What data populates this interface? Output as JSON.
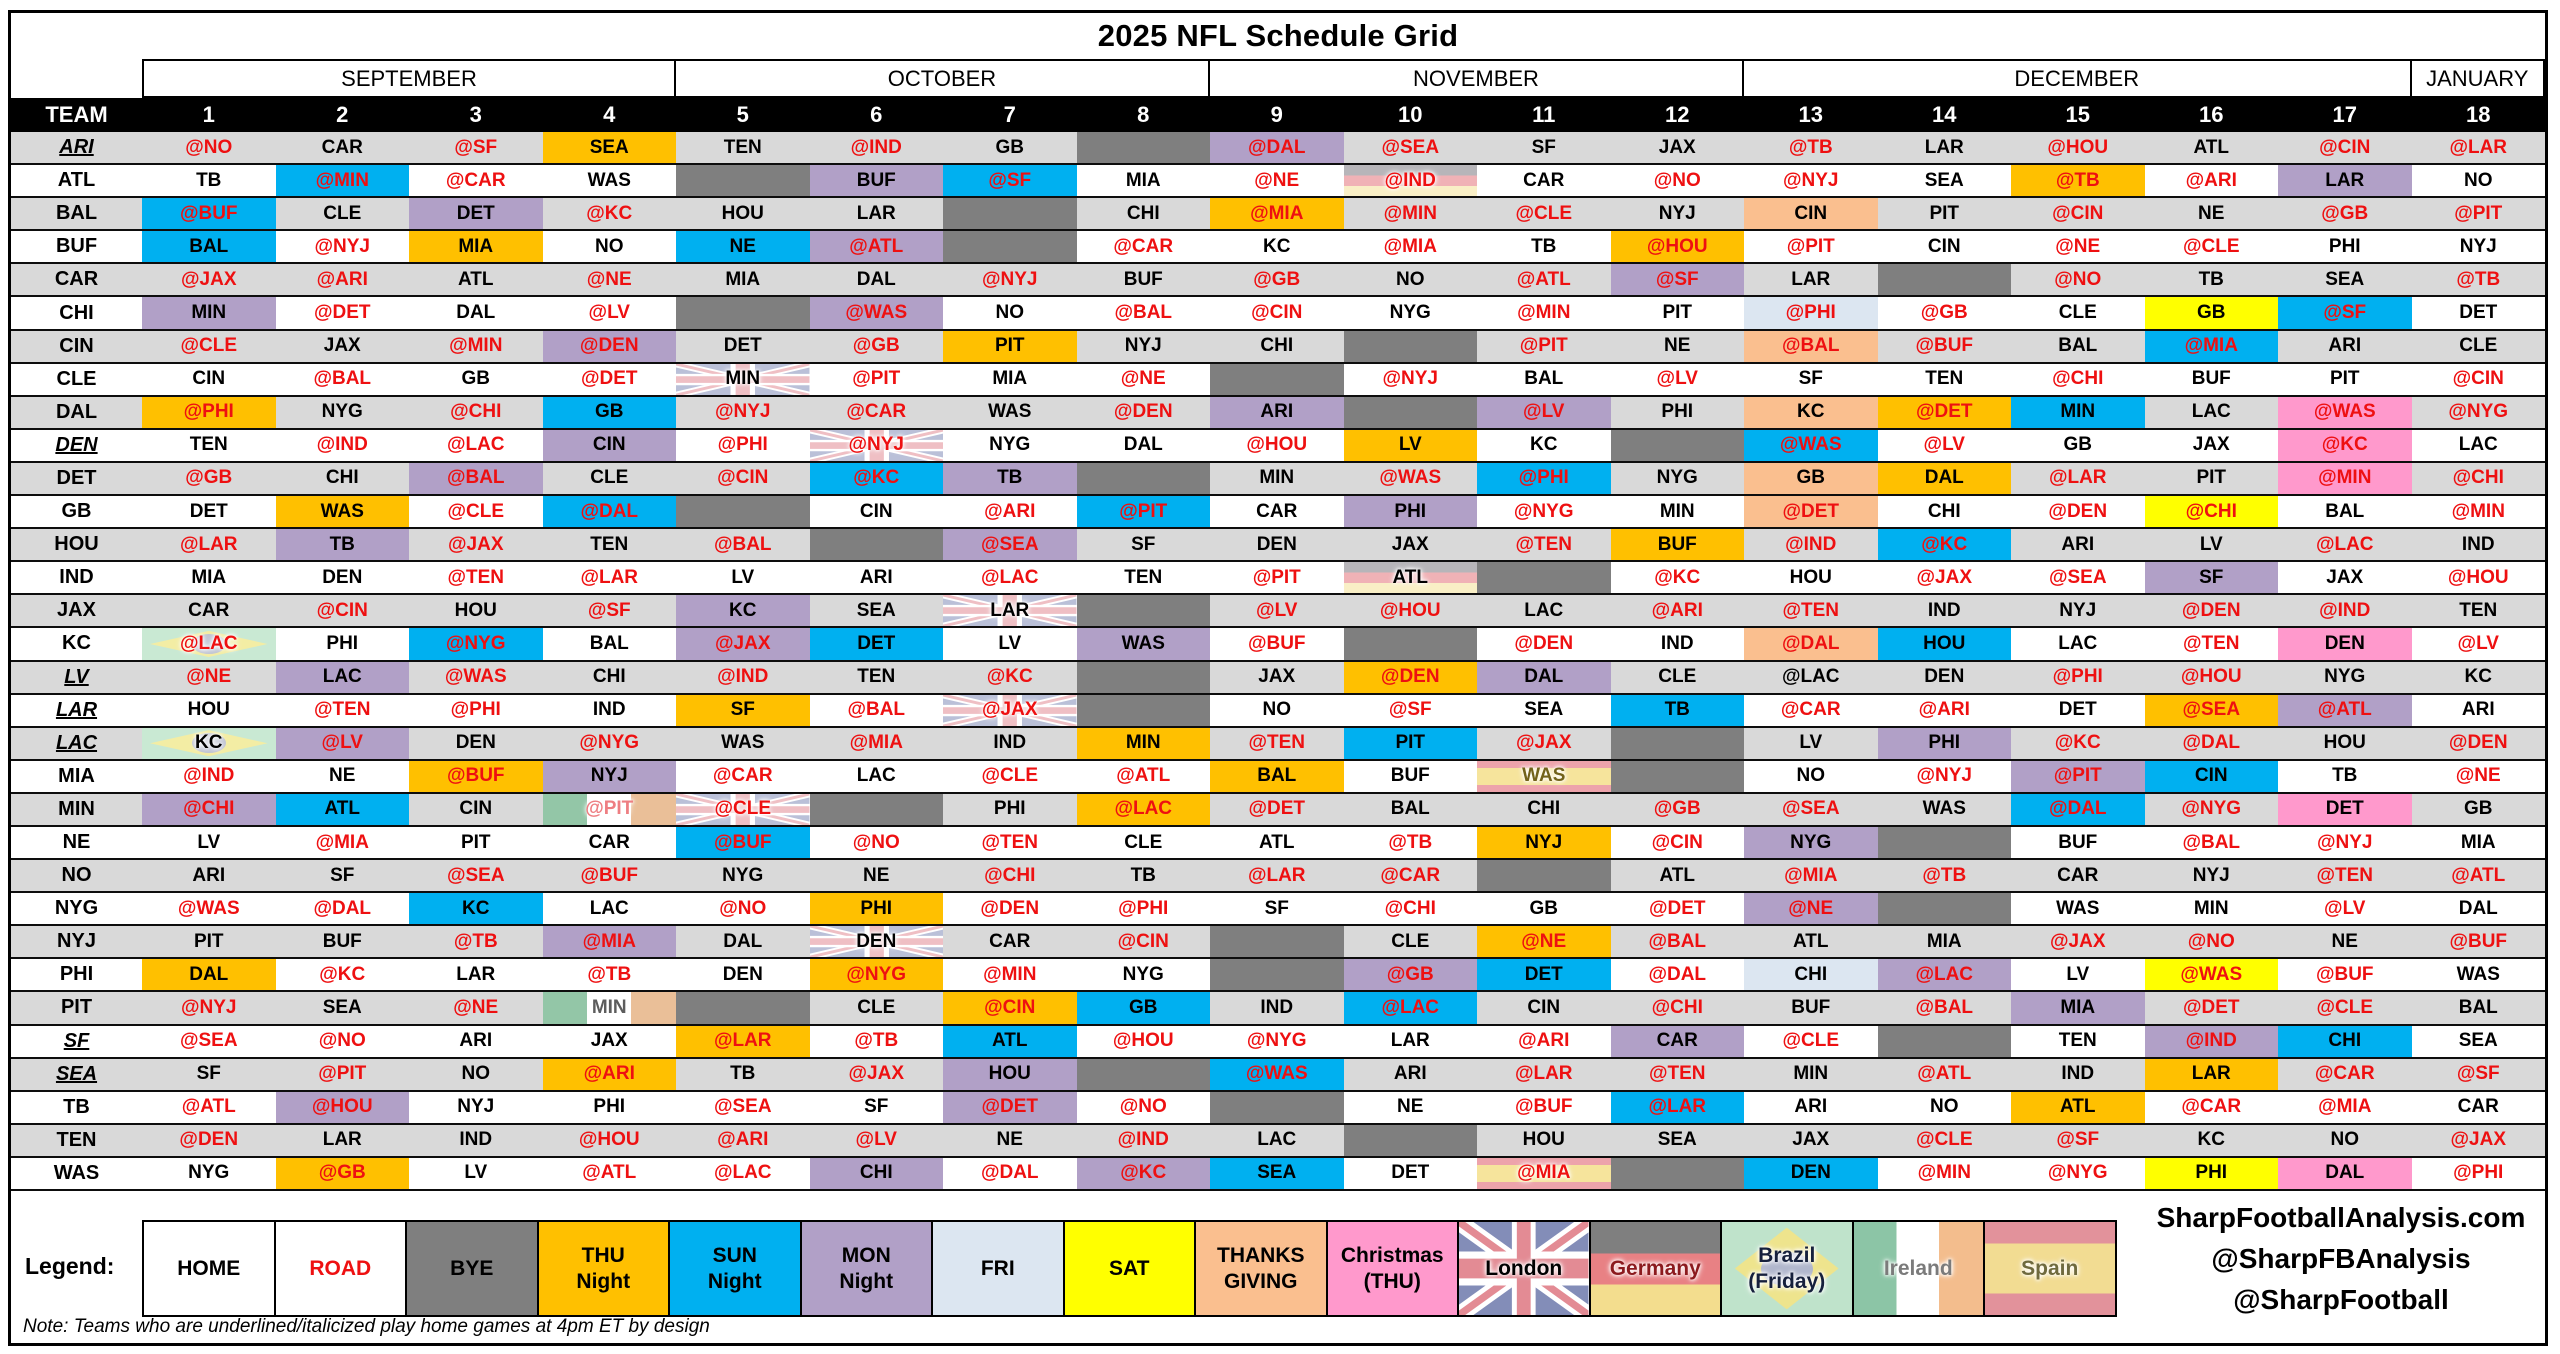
{
  "title": "2025 NFL Schedule Grid",
  "footer": {
    "site": "SharpFootballAnalysis.com",
    "handle1": "@SharpFBAnalysis",
    "handle2": "@SharpFootball"
  },
  "note": "Note: Teams who are underlined/italicized play home games at 4pm ET by design",
  "legend": {
    "label": "Legend:",
    "items": [
      {
        "label": "HOME",
        "type": "homebox"
      },
      {
        "label": "ROAD",
        "type": "roadbox"
      },
      {
        "label": "BYE",
        "type": "bye"
      },
      {
        "label": "THU\nNight",
        "type": "thu"
      },
      {
        "label": "SUN\nNight",
        "type": "sun"
      },
      {
        "label": "MON\nNight",
        "type": "mon"
      },
      {
        "label": "FRI",
        "type": "fri"
      },
      {
        "label": "SAT",
        "type": "sat"
      },
      {
        "label": "THANKS\nGIVING",
        "type": "tg"
      },
      {
        "label": "Christmas\n(THU)",
        "type": "xmas"
      },
      {
        "label": "London",
        "type": "london"
      },
      {
        "label": "Germany",
        "type": "germany"
      },
      {
        "label": "Brazil\n(Friday)",
        "type": "brazil"
      },
      {
        "label": "Ireland",
        "type": "ireland"
      },
      {
        "label": "Spain",
        "type": "spain"
      }
    ]
  },
  "colors": {
    "row_alt_gray": "#d9d9d9",
    "road_text": "#ee1011",
    "bye": "#7f7f7f",
    "thu_night": "#ffc000",
    "sun_night": "#00b0f0",
    "mon_night": "#b1a0c7",
    "fri": "#dce6f1",
    "sat": "#ffff00",
    "thanksgiving": "#fabf8f",
    "christmas": "#ff99cc"
  },
  "chart_data": {
    "type": "table",
    "title": "2025 NFL Schedule Grid",
    "team_column_label": "TEAM",
    "weeks": [
      "1",
      "2",
      "3",
      "4",
      "5",
      "6",
      "7",
      "8",
      "9",
      "10",
      "11",
      "12",
      "13",
      "14",
      "15",
      "16",
      "17",
      "18"
    ],
    "month_groups": [
      {
        "label": "SEPTEMBER",
        "weeks": 4
      },
      {
        "label": "OCTOBER",
        "weeks": 4
      },
      {
        "label": "NOVEMBER",
        "weeks": 4
      },
      {
        "label": "DECEMBER",
        "weeks": 5
      },
      {
        "label": "JANUARY",
        "weeks": 1
      }
    ],
    "cell_format": "opponent|background|textstyle : background one of bye,thu,sun,mon,fri,sat,tg,xmas,london,germany,brazil,ireland,spain; @ prefix means road (red text)",
    "rows": [
      {
        "team": "ARI",
        "italic": true,
        "games": [
          "@NO",
          "CAR",
          "@SF",
          "SEA|thu",
          "TEN",
          "@IND",
          "GB",
          "|bye",
          "@DAL|mon",
          "@SEA",
          "SF",
          "JAX",
          "@TB",
          "LAR",
          "@HOU",
          "ATL",
          "@CIN",
          "@LAR"
        ]
      },
      {
        "team": "ATL",
        "italic": false,
        "games": [
          "TB",
          "@MIN|sun",
          "@CAR",
          "WAS",
          "|bye",
          "BUF|mon",
          "@SF|sun",
          "MIA",
          "@NE",
          "@IND|germany",
          "CAR",
          "@NO",
          "@NYJ",
          "SEA",
          "@TB|thu",
          "@ARI",
          "LAR|mon",
          "NO"
        ]
      },
      {
        "team": "BAL",
        "italic": false,
        "games": [
          "@BUF|sun",
          "CLE",
          "DET|mon",
          "@KC",
          "HOU",
          "LAR",
          "|bye",
          "CHI",
          "@MIA|thu",
          "@MIN",
          "@CLE",
          "NYJ",
          "CIN|tg",
          "PIT",
          "@CIN",
          "NE",
          "@GB",
          "@PIT"
        ]
      },
      {
        "team": "BUF",
        "italic": false,
        "games": [
          "BAL|sun",
          "@NYJ",
          "MIA|thu",
          "NO",
          "NE|sun",
          "@ATL|mon",
          "|bye",
          "@CAR",
          "KC",
          "@MIA",
          "TB",
          "@HOU|thu",
          "@PIT",
          "CIN",
          "@NE",
          "@CLE",
          "PHI",
          "NYJ"
        ]
      },
      {
        "team": "CAR",
        "italic": false,
        "games": [
          "@JAX",
          "@ARI",
          "ATL",
          "@NE",
          "MIA",
          "DAL",
          "@NYJ",
          "BUF",
          "@GB",
          "NO",
          "@ATL",
          "@SF|mon",
          "LAR",
          "|bye",
          "@NO",
          "TB",
          "SEA",
          "@TB"
        ]
      },
      {
        "team": "CHI",
        "italic": false,
        "games": [
          "MIN|mon",
          "@DET",
          "DAL",
          "@LV",
          "|bye",
          "@WAS|mon",
          "NO",
          "@BAL",
          "@CIN",
          "NYG",
          "@MIN",
          "PIT",
          "@PHI|fri",
          "@GB",
          "CLE",
          "GB|sat",
          "@SF|sun",
          "DET"
        ]
      },
      {
        "team": "CIN",
        "italic": false,
        "games": [
          "@CLE",
          "JAX",
          "@MIN",
          "@DEN|mon",
          "DET",
          "@GB",
          "PIT|thu",
          "NYJ",
          "CHI",
          "|bye",
          "@PIT",
          "NE",
          "@BAL|tg",
          "@BUF",
          "BAL",
          "@MIA|sun",
          "ARI",
          "CLE"
        ]
      },
      {
        "team": "CLE",
        "italic": false,
        "games": [
          "CIN",
          "@BAL",
          "GB",
          "@DET",
          "MIN|london",
          "@PIT",
          "MIA",
          "@NE",
          "|bye",
          "@NYJ",
          "BAL",
          "@LV",
          "SF",
          "TEN",
          "@CHI",
          "BUF",
          "PIT",
          "@CIN"
        ]
      },
      {
        "team": "DAL",
        "italic": false,
        "games": [
          "@PHI|thu",
          "NYG",
          "@CHI",
          "GB|sun",
          "@NYJ",
          "@CAR",
          "WAS",
          "@DEN",
          "ARI|mon",
          "|bye",
          "@LV|mon",
          "PHI",
          "KC|tg",
          "@DET|thu",
          "MIN|sun",
          "LAC",
          "@WAS|xmas",
          "@NYG"
        ]
      },
      {
        "team": "DEN",
        "italic": true,
        "games": [
          "TEN",
          "@IND",
          "@LAC",
          "CIN|mon",
          "@PHI",
          "@NYJ|london",
          "NYG",
          "DAL",
          "@HOU",
          "LV|thu",
          "KC",
          "|bye",
          "@WAS|sun",
          "@LV",
          "GB",
          "JAX",
          "@KC|xmas",
          "LAC"
        ]
      },
      {
        "team": "DET",
        "italic": false,
        "games": [
          "@GB",
          "CHI",
          "@BAL|mon",
          "CLE",
          "@CIN",
          "@KC|sun",
          "TB|mon",
          "|bye",
          "MIN",
          "@WAS",
          "@PHI|sun",
          "NYG",
          "GB|tg",
          "DAL|thu",
          "@LAR",
          "PIT",
          "@MIN|xmas",
          "@CHI"
        ]
      },
      {
        "team": "GB",
        "italic": false,
        "games": [
          "DET",
          "WAS|thu",
          "@CLE",
          "@DAL|sun",
          "|bye",
          "CIN",
          "@ARI",
          "@PIT|sun",
          "CAR",
          "PHI|mon",
          "@NYG",
          "MIN",
          "@DET|tg",
          "CHI",
          "@DEN",
          "@CHI|sat",
          "BAL",
          "@MIN"
        ]
      },
      {
        "team": "HOU",
        "italic": false,
        "games": [
          "@LAR",
          "TB|mon",
          "@JAX",
          "TEN",
          "@BAL",
          "|bye",
          "@SEA|mon",
          "SF",
          "DEN",
          "JAX",
          "@TEN",
          "BUF|thu",
          "@IND",
          "@KC|sun",
          "ARI",
          "LV",
          "@LAC",
          "IND"
        ]
      },
      {
        "team": "IND",
        "italic": false,
        "games": [
          "MIA",
          "DEN",
          "@TEN",
          "@LAR",
          "LV",
          "ARI",
          "@LAC",
          "TEN",
          "@PIT",
          "ATL|germany",
          "|bye",
          "@KC",
          "HOU",
          "@JAX",
          "@SEA",
          "SF|mon",
          "JAX",
          "@HOU"
        ]
      },
      {
        "team": "JAX",
        "italic": false,
        "games": [
          "CAR",
          "@CIN",
          "HOU",
          "@SF",
          "KC|mon",
          "SEA",
          "LAR|london",
          "|bye",
          "@LV",
          "@HOU",
          "LAC",
          "@ARI",
          "@TEN",
          "IND",
          "NYJ",
          "@DEN",
          "@IND",
          "TEN"
        ]
      },
      {
        "team": "KC",
        "italic": false,
        "games": [
          "@LAC|brazil",
          "PHI",
          "@NYG|sun",
          "BAL",
          "@JAX|mon",
          "DET|sun",
          "LV",
          "WAS|mon",
          "@BUF",
          "|bye",
          "@DEN",
          "IND",
          "@DAL|tg",
          "HOU|sun",
          "LAC",
          "@TEN",
          "DEN|xmas",
          "@LV"
        ]
      },
      {
        "team": "LV",
        "italic": true,
        "games": [
          "@NE",
          "LAC|mon",
          "@WAS",
          "CHI",
          "@IND",
          "TEN",
          "@KC",
          "|bye",
          "JAX",
          "@DEN|thu",
          "DAL|mon",
          "CLE",
          "@LAC||home",
          "DEN",
          "@PHI",
          "@HOU",
          "NYG",
          "KC"
        ]
      },
      {
        "team": "LAR",
        "italic": true,
        "games": [
          "HOU",
          "@TEN",
          "@PHI",
          "IND",
          "SF|thu",
          "@BAL",
          "@JAX|london",
          "|bye",
          "NO",
          "@SF",
          "SEA",
          "TB|sun",
          "@CAR",
          "@ARI",
          "DET",
          "@SEA|thu",
          "@ATL|mon",
          "ARI"
        ]
      },
      {
        "team": "LAC",
        "italic": true,
        "games": [
          "KC|brazil",
          "@LV|mon",
          "DEN",
          "@NYG",
          "WAS",
          "@MIA",
          "IND",
          "MIN|thu",
          "@TEN",
          "PIT|sun",
          "@JAX",
          "|bye",
          "LV",
          "PHI|mon",
          "@KC",
          "@DAL",
          "HOU",
          "@DEN"
        ]
      },
      {
        "team": "MIA",
        "italic": false,
        "games": [
          "@IND",
          "NE",
          "@BUF|thu",
          "NYJ|mon",
          "@CAR",
          "LAC",
          "@CLE",
          "@ATL",
          "BAL|thu",
          "BUF",
          "WAS|spain|khaki",
          "|bye",
          "NO",
          "@NYJ",
          "@PIT|mon",
          "CIN|sun",
          "TB",
          "@NE"
        ]
      },
      {
        "team": "MIN",
        "italic": false,
        "games": [
          "@CHI|mon",
          "ATL|sun",
          "CIN",
          "@PIT|ireland|salmon",
          "@CLE|london",
          "|bye",
          "PHI",
          "@LAC|thu",
          "@DET",
          "BAL",
          "CHI",
          "@GB",
          "@SEA",
          "WAS",
          "@DAL|sun",
          "@NYG",
          "DET|xmas",
          "GB"
        ]
      },
      {
        "team": "NE",
        "italic": false,
        "games": [
          "LV",
          "@MIA",
          "PIT",
          "CAR",
          "@BUF|sun",
          "@NO",
          "@TEN",
          "CLE",
          "ATL",
          "@TB",
          "NYJ|thu",
          "@CIN",
          "NYG|mon",
          "|bye",
          "BUF",
          "@BAL",
          "@NYJ",
          "MIA"
        ]
      },
      {
        "team": "NO",
        "italic": false,
        "games": [
          "ARI",
          "SF",
          "@SEA",
          "@BUF",
          "NYG",
          "NE",
          "@CHI",
          "TB",
          "@LAR",
          "@CAR",
          "|bye",
          "ATL",
          "@MIA",
          "@TB",
          "CAR",
          "NYJ",
          "@TEN",
          "@ATL"
        ]
      },
      {
        "team": "NYG",
        "italic": false,
        "games": [
          "@WAS",
          "@DAL",
          "KC|sun",
          "LAC",
          "@NO",
          "PHI|thu",
          "@DEN",
          "@PHI",
          "SF",
          "@CHI",
          "GB",
          "@DET",
          "@NE|mon",
          "|bye",
          "WAS",
          "MIN",
          "@LV",
          "DAL"
        ]
      },
      {
        "team": "NYJ",
        "italic": false,
        "games": [
          "PIT",
          "BUF",
          "@TB",
          "@MIA|mon",
          "DAL",
          "DEN|london",
          "CAR",
          "@CIN",
          "|bye",
          "CLE",
          "@NE|thu",
          "@BAL",
          "ATL",
          "MIA",
          "@JAX",
          "@NO",
          "NE",
          "@BUF"
        ]
      },
      {
        "team": "PHI",
        "italic": false,
        "games": [
          "DAL|thu",
          "@KC",
          "LAR",
          "@TB",
          "DEN",
          "@NYG|thu",
          "@MIN",
          "NYG",
          "|bye",
          "@GB|mon",
          "DET|sun",
          "@DAL",
          "CHI|fri",
          "@LAC|mon",
          "LV",
          "@WAS|sat",
          "@BUF",
          "WAS"
        ]
      },
      {
        "team": "PIT",
        "italic": false,
        "games": [
          "@NYJ",
          "SEA",
          "@NE",
          "MIN|ireland|muted",
          "|bye",
          "CLE",
          "@CIN|thu",
          "GB|sun",
          "IND",
          "@LAC|sun",
          "CIN",
          "@CHI",
          "BUF",
          "@BAL",
          "MIA|mon",
          "@DET",
          "@CLE",
          "BAL"
        ]
      },
      {
        "team": "SF",
        "italic": true,
        "games": [
          "@SEA",
          "@NO",
          "ARI",
          "JAX",
          "@LAR|thu",
          "@TB",
          "ATL|sun",
          "@HOU",
          "@NYG",
          "LAR",
          "@ARI",
          "CAR|mon",
          "@CLE",
          "|bye",
          "TEN",
          "@IND|mon",
          "CHI|sun",
          "SEA"
        ]
      },
      {
        "team": "SEA",
        "italic": true,
        "games": [
          "SF",
          "@PIT",
          "NO",
          "@ARI|thu",
          "TB",
          "@JAX",
          "HOU|mon",
          "|bye",
          "@WAS|sun",
          "ARI",
          "@LAR",
          "@TEN",
          "MIN",
          "@ATL",
          "IND",
          "LAR|thu",
          "@CAR",
          "@SF"
        ]
      },
      {
        "team": "TB",
        "italic": false,
        "games": [
          "@ATL",
          "@HOU|mon",
          "NYJ",
          "PHI",
          "@SEA",
          "SF",
          "@DET|mon",
          "@NO",
          "|bye",
          "NE",
          "@BUF",
          "@LAR|sun",
          "ARI",
          "NO",
          "ATL|thu",
          "@CAR",
          "@MIA",
          "CAR"
        ]
      },
      {
        "team": "TEN",
        "italic": false,
        "games": [
          "@DEN",
          "LAR",
          "IND",
          "@HOU",
          "@ARI",
          "@LV",
          "NE",
          "@IND",
          "LAC",
          "|bye",
          "HOU",
          "SEA",
          "JAX",
          "@CLE",
          "@SF",
          "KC",
          "NO",
          "@JAX"
        ]
      },
      {
        "team": "WAS",
        "italic": false,
        "games": [
          "NYG",
          "@GB|thu",
          "LV",
          "@ATL",
          "@LAC",
          "CHI|mon",
          "@DAL",
          "@KC|mon",
          "SEA|sun",
          "DET",
          "@MIA|spain",
          "|bye",
          "DEN|sun",
          "@MIN",
          "@NYG",
          "PHI|sat",
          "DAL|xmas",
          "@PHI"
        ]
      }
    ]
  }
}
